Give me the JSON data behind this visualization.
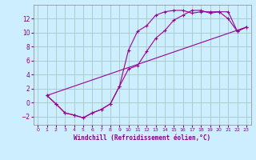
{
  "background_color": "#cceeff",
  "grid_color": "#aacccc",
  "line_color": "#990099",
  "marker": "+",
  "xlabel": "Windchill (Refroidissement éolien,°C)",
  "xlim": [
    -0.5,
    23.5
  ],
  "ylim": [
    -3.2,
    14.0
  ],
  "yticks": [
    -2,
    0,
    2,
    4,
    6,
    8,
    10,
    12
  ],
  "xticks": [
    0,
    1,
    2,
    3,
    4,
    5,
    6,
    7,
    8,
    9,
    10,
    11,
    12,
    13,
    14,
    15,
    16,
    17,
    18,
    19,
    20,
    21,
    22,
    23
  ],
  "line1_x": [
    1,
    2,
    3,
    4,
    5,
    6,
    7,
    8,
    9,
    10,
    11,
    12,
    13,
    14,
    15,
    16,
    17,
    18,
    19,
    20,
    21,
    22,
    23
  ],
  "line1_y": [
    1.0,
    -0.2,
    -1.5,
    -1.8,
    -2.2,
    -1.5,
    -1.0,
    -0.2,
    2.3,
    7.5,
    10.2,
    11.0,
    12.5,
    13.0,
    13.2,
    13.2,
    12.8,
    13.0,
    13.0,
    13.0,
    12.0,
    10.2,
    10.8
  ],
  "line2_x": [
    1,
    2,
    3,
    4,
    5,
    6,
    7,
    8,
    9,
    10,
    11,
    12,
    13,
    14,
    15,
    16,
    17,
    18,
    19,
    20,
    21,
    22,
    23
  ],
  "line2_y": [
    1.0,
    -0.2,
    -1.5,
    -1.8,
    -2.2,
    -1.5,
    -1.0,
    -0.2,
    2.3,
    4.8,
    5.3,
    7.3,
    9.2,
    10.3,
    11.8,
    12.5,
    13.2,
    13.2,
    12.8,
    13.0,
    13.0,
    10.2,
    10.8
  ],
  "line3_x": [
    1,
    23
  ],
  "line3_y": [
    1.0,
    10.8
  ]
}
